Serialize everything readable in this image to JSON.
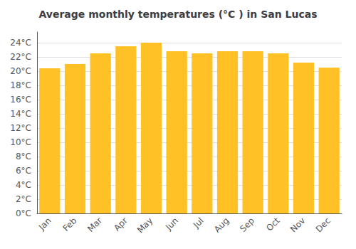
{
  "chart_data": {
    "type": "bar",
    "title": "Average monthly temperatures (°C ) in San Lucas",
    "categories": [
      "Jan",
      "Feb",
      "Mar",
      "Apr",
      "May",
      "Jun",
      "Jul",
      "Aug",
      "Sep",
      "Oct",
      "Nov",
      "Dec"
    ],
    "values": [
      20.4,
      21.0,
      22.5,
      23.5,
      24.0,
      22.8,
      22.5,
      22.8,
      22.8,
      22.5,
      21.2,
      20.5
    ],
    "color": "#FFC125",
    "ylim": [
      0,
      25.5
    ],
    "yticks": [
      {
        "value": 0,
        "label": "0°C"
      },
      {
        "value": 2,
        "label": "2°C"
      },
      {
        "value": 4,
        "label": "4°C"
      },
      {
        "value": 6,
        "label": "6°C"
      },
      {
        "value": 8,
        "label": "8°C"
      },
      {
        "value": 10,
        "label": "10°C"
      },
      {
        "value": 12,
        "label": "12°C"
      },
      {
        "value": 14,
        "label": "14°C"
      },
      {
        "value": 16,
        "label": "16°C"
      },
      {
        "value": 18,
        "label": "18°C"
      },
      {
        "value": 20,
        "label": "20°C"
      },
      {
        "value": 22,
        "label": "22°C"
      },
      {
        "value": 24,
        "label": "24°C"
      }
    ],
    "grid": true
  }
}
